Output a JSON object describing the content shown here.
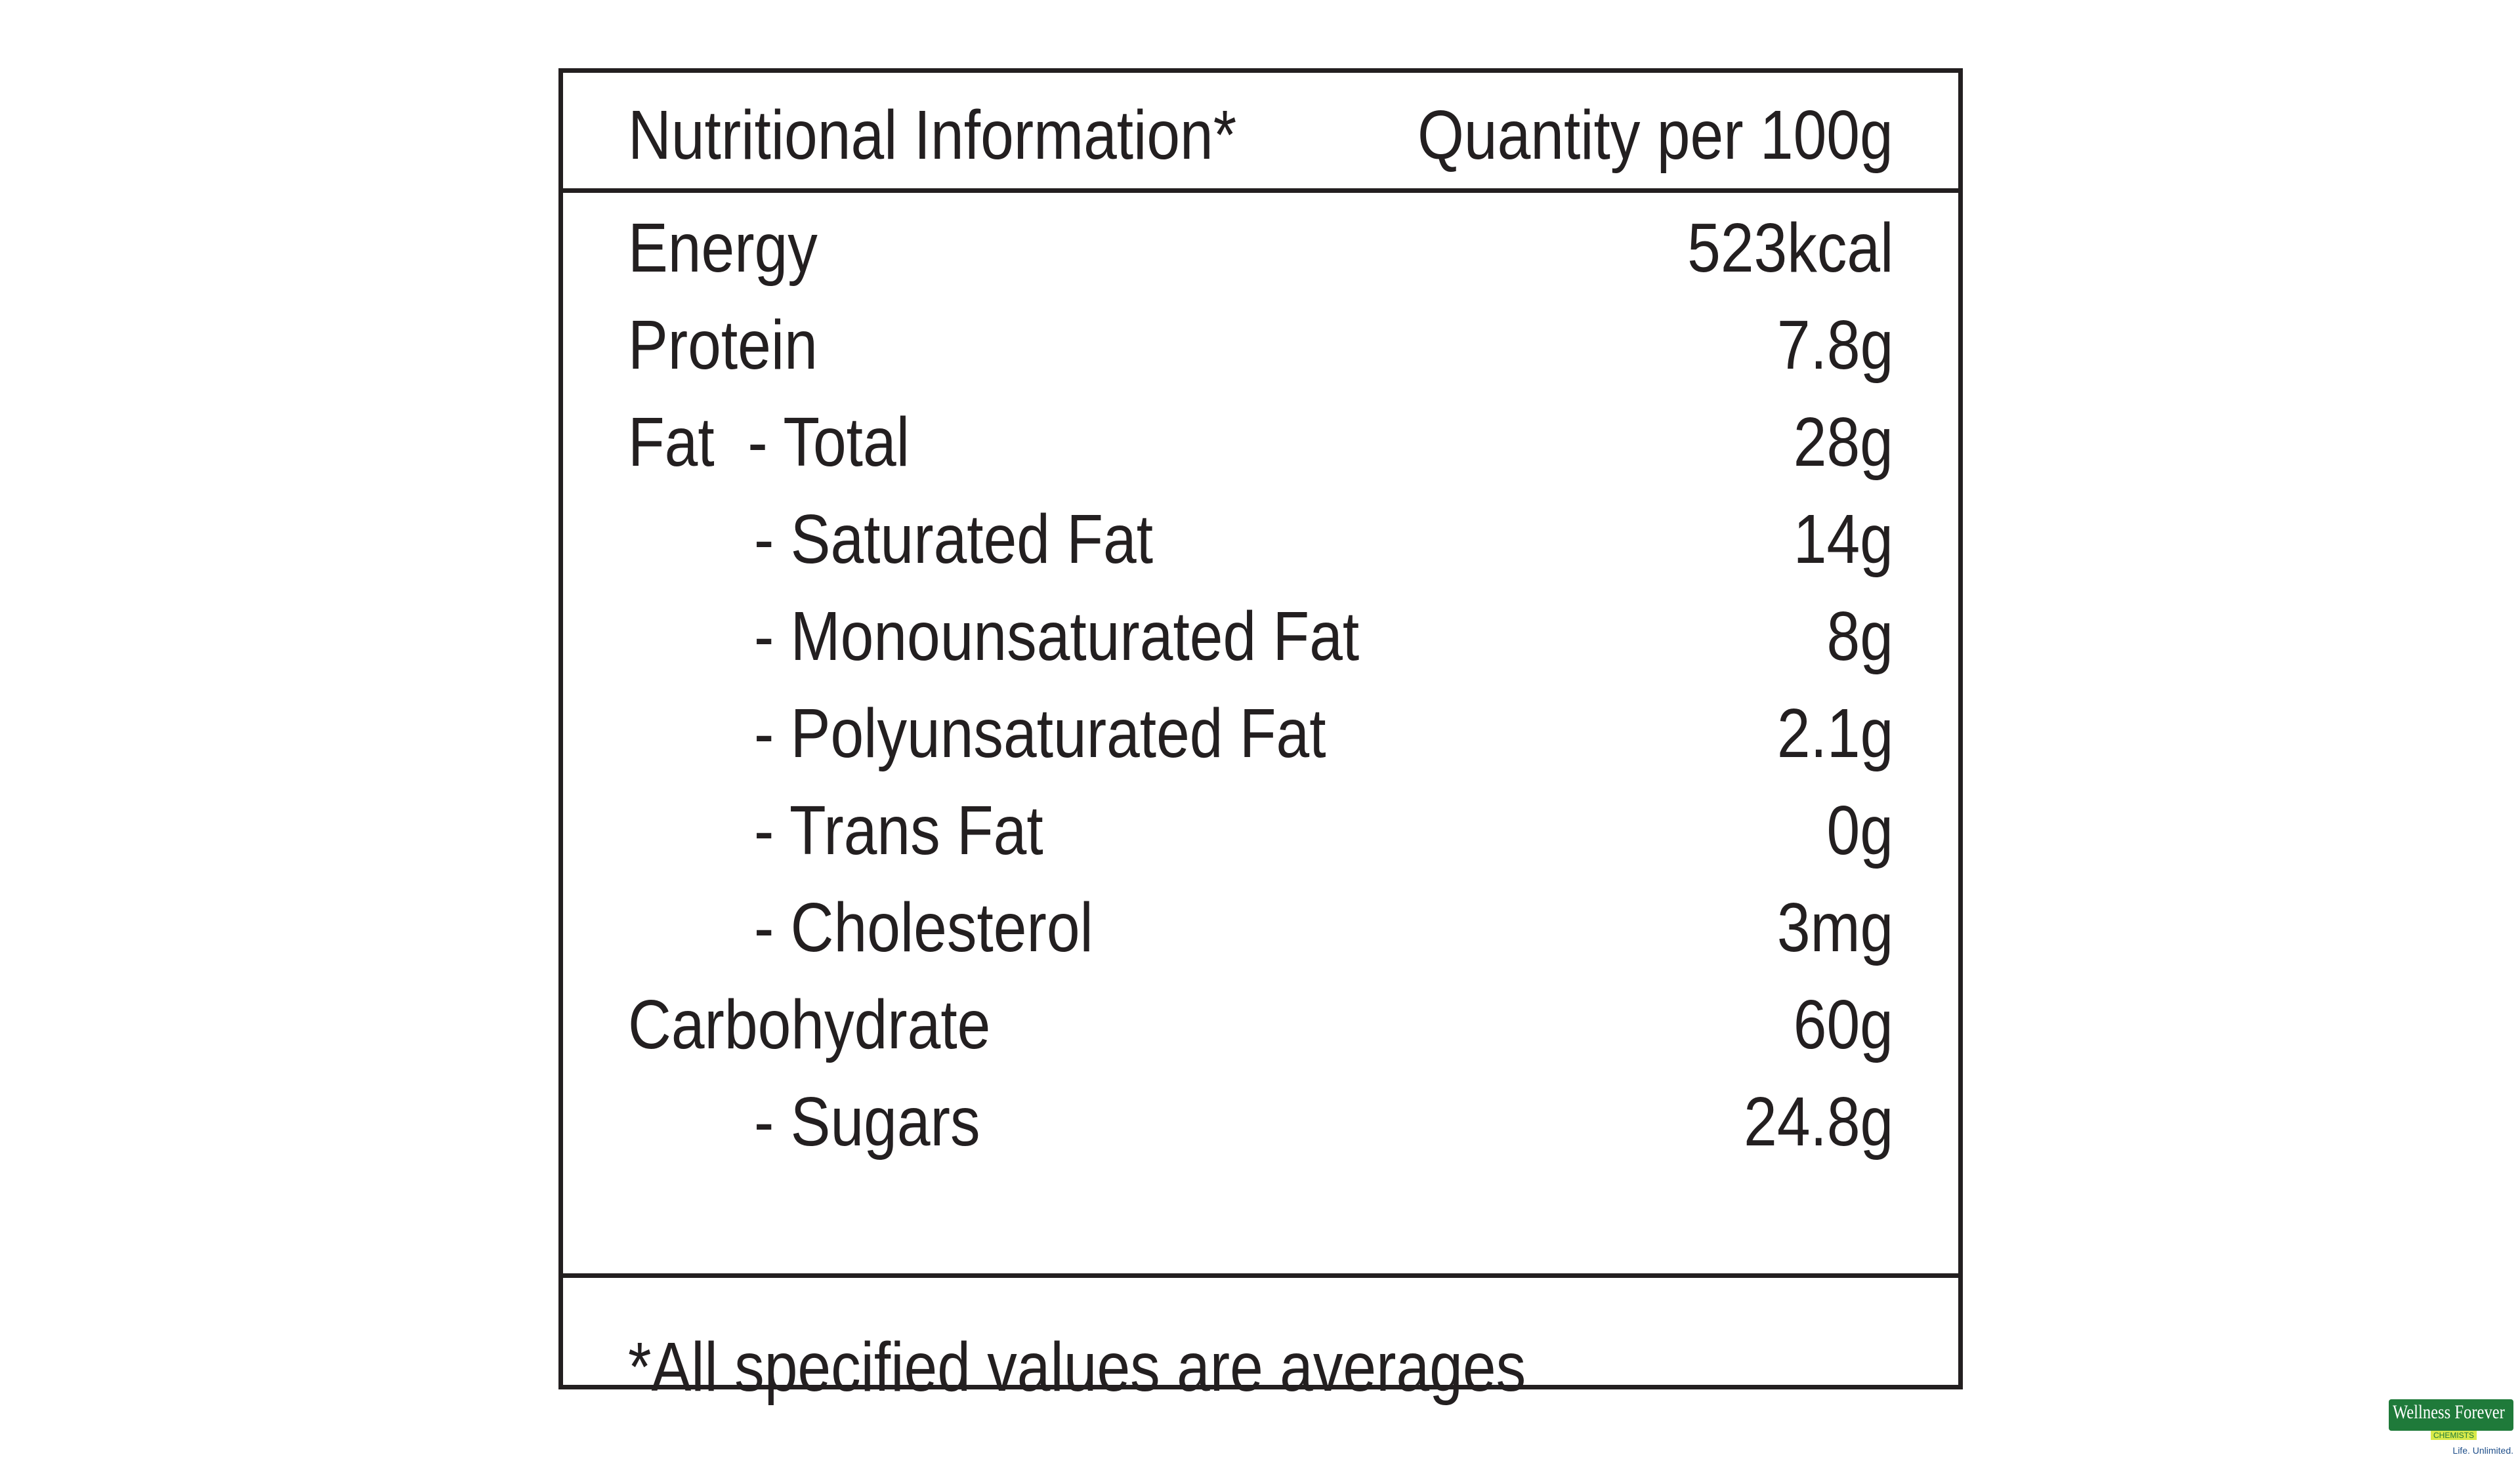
{
  "table": {
    "header": {
      "left": "Nutritional Information*",
      "right": "Quantity per 100g"
    },
    "rows": [
      {
        "label": "Energy",
        "value": "523kcal"
      },
      {
        "label": "Protein",
        "value": "7.8g"
      },
      {
        "label": "Fat  - Total",
        "value": "28g"
      },
      {
        "label": "- Saturated Fat",
        "value": "14g"
      },
      {
        "label": "- Monounsaturated Fat",
        "value": "8g"
      },
      {
        "label": "- Polyunsaturated Fat",
        "value": "2.1g"
      },
      {
        "label": "- Trans Fat",
        "value": "0g"
      },
      {
        "label": "- Cholesterol",
        "value": "3mg"
      },
      {
        "label": "Carbohydrate",
        "value": "60g"
      },
      {
        "label": "- Sugars",
        "value": "24.8g"
      }
    ],
    "footnote": "*All specified values are averages"
  },
  "watermark": {
    "name": "Wellness Forever",
    "sub": "CHEMISTS",
    "tagline": "Life. Unlimited."
  },
  "colors": {
    "ink": "#231f20",
    "background": "#ffffff",
    "logo_green": "#1f7a3a"
  }
}
